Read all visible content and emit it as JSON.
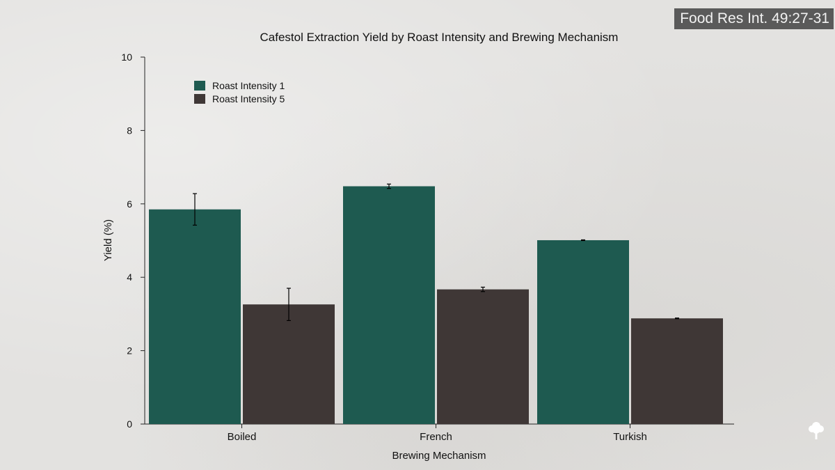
{
  "source_badge": "Food Res Int. 49:27-31",
  "colors": {
    "series_1": "#1e5a50",
    "series_2": "#3f3736",
    "axis": "#222222"
  },
  "icons": {
    "corner": "tree-icon"
  },
  "chart_data": {
    "type": "bar",
    "title": "Cafestol Extraction Yield by Roast Intensity and Brewing Mechanism",
    "xlabel": "Brewing Mechanism",
    "ylabel": "Yield (%)",
    "categories": [
      "Boiled",
      "French",
      "Turkish"
    ],
    "ylim": [
      0,
      10
    ],
    "yticks": [
      0,
      2,
      4,
      6,
      8,
      10
    ],
    "grid": false,
    "legend_position": "top-left",
    "series": [
      {
        "name": "Roast Intensity 1",
        "color": "#1e5a50",
        "values": [
          5.85,
          6.48,
          5.01
        ],
        "errors": [
          0.43,
          0.06,
          0.01
        ]
      },
      {
        "name": "Roast Intensity 5",
        "color": "#3f3736",
        "values": [
          3.26,
          3.67,
          2.88
        ],
        "errors": [
          0.44,
          0.06,
          0.01
        ]
      }
    ]
  }
}
